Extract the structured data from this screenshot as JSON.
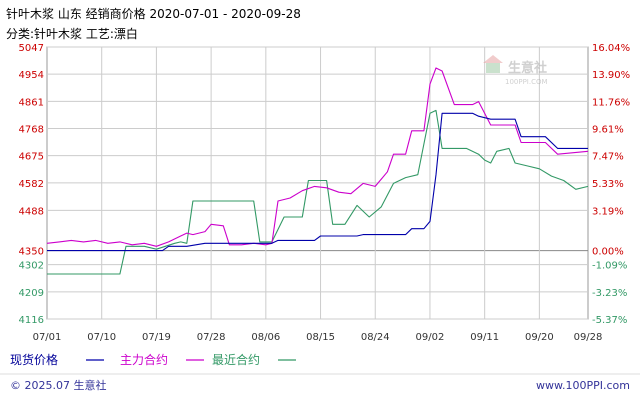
{
  "header": {
    "title": "针叶木浆 山东 经销商价格 2020-07-01 - 2020-09-28",
    "subtitle": "分类:针叶木浆 工艺:漂白"
  },
  "watermark": {
    "brand": "生意社",
    "url": "100PPI.COM"
  },
  "legend": [
    {
      "label": "现货价格",
      "color": "#0000aa"
    },
    {
      "label": "主力合约",
      "color": "#cc00cc"
    },
    {
      "label": "最近合约",
      "color": "#339966"
    }
  ],
  "footer": {
    "copyright": "© 2025.07 生意社",
    "site": "www.100PPI.com"
  },
  "colors": {
    "left_axis": "#cc0000",
    "left_axis_lower": "#339966",
    "right_axis": "#cc0000",
    "right_axis_lower": "#339966",
    "grid": "#cccccc"
  },
  "chart_data": {
    "type": "line",
    "x_ticks": [
      "07/01",
      "07/10",
      "07/19",
      "07/28",
      "08/06",
      "08/15",
      "08/24",
      "09/02",
      "09/11",
      "09/20",
      "09/28"
    ],
    "y_left_ticks": [
      5047,
      4954,
      4861,
      4768,
      4675,
      4582,
      4488,
      4350,
      4302,
      4209,
      4116
    ],
    "y_right_ticks": [
      "16.04%",
      "13.90%",
      "11.76%",
      "9.61%",
      "7.47%",
      "5.33%",
      "3.19%",
      "0.00%",
      "-1.09%",
      "-3.23%",
      "-5.37%"
    ],
    "ylim": [
      4116,
      5047
    ],
    "x_range": [
      "07/01",
      "09/28"
    ],
    "grid": true,
    "series": [
      {
        "name": "现货价格",
        "color": "#0000aa",
        "points": [
          [
            "07/01",
            4350
          ],
          [
            "07/20",
            4350
          ],
          [
            "07/21",
            4365
          ],
          [
            "07/24",
            4365
          ],
          [
            "07/27",
            4375
          ],
          [
            "08/07",
            4375
          ],
          [
            "08/08",
            4385
          ],
          [
            "08/14",
            4385
          ],
          [
            "08/15",
            4400
          ],
          [
            "08/21",
            4400
          ],
          [
            "08/22",
            4405
          ],
          [
            "08/29",
            4405
          ],
          [
            "08/30",
            4425
          ],
          [
            "09/01",
            4425
          ],
          [
            "09/02",
            4450
          ],
          [
            "09/03",
            4610
          ],
          [
            "09/04",
            4820
          ],
          [
            "09/09",
            4820
          ],
          [
            "09/10",
            4810
          ],
          [
            "09/12",
            4800
          ],
          [
            "09/16",
            4800
          ],
          [
            "09/17",
            4740
          ],
          [
            "09/21",
            4740
          ],
          [
            "09/23",
            4700
          ],
          [
            "09/28",
            4700
          ]
        ]
      },
      {
        "name": "主力合约",
        "color": "#cc00cc",
        "points": [
          [
            "07/01",
            4375
          ],
          [
            "07/03",
            4380
          ],
          [
            "07/05",
            4385
          ],
          [
            "07/07",
            4380
          ],
          [
            "07/09",
            4385
          ],
          [
            "07/11",
            4375
          ],
          [
            "07/13",
            4380
          ],
          [
            "07/15",
            4370
          ],
          [
            "07/17",
            4375
          ],
          [
            "07/19",
            4365
          ],
          [
            "07/21",
            4380
          ],
          [
            "07/23",
            4400
          ],
          [
            "07/24",
            4410
          ],
          [
            "07/25",
            4405
          ],
          [
            "07/27",
            4415
          ],
          [
            "07/28",
            4440
          ],
          [
            "07/30",
            4435
          ],
          [
            "07/31",
            4370
          ],
          [
            "08/02",
            4370
          ],
          [
            "08/04",
            4375
          ],
          [
            "08/06",
            4370
          ],
          [
            "08/07",
            4375
          ],
          [
            "08/08",
            4520
          ],
          [
            "08/10",
            4530
          ],
          [
            "08/12",
            4555
          ],
          [
            "08/14",
            4570
          ],
          [
            "08/16",
            4565
          ],
          [
            "08/18",
            4550
          ],
          [
            "08/20",
            4545
          ],
          [
            "08/22",
            4580
          ],
          [
            "08/24",
            4570
          ],
          [
            "08/26",
            4620
          ],
          [
            "08/27",
            4680
          ],
          [
            "08/29",
            4680
          ],
          [
            "08/30",
            4760
          ],
          [
            "09/01",
            4760
          ],
          [
            "09/02",
            4920
          ],
          [
            "09/03",
            4975
          ],
          [
            "09/04",
            4965
          ],
          [
            "09/06",
            4850
          ],
          [
            "09/09",
            4850
          ],
          [
            "09/10",
            4860
          ],
          [
            "09/12",
            4780
          ],
          [
            "09/16",
            4780
          ],
          [
            "09/17",
            4720
          ],
          [
            "09/21",
            4720
          ],
          [
            "09/23",
            4680
          ],
          [
            "09/28",
            4690
          ]
        ]
      },
      {
        "name": "最近合约",
        "color": "#339966",
        "points": [
          [
            "07/01",
            4270
          ],
          [
            "07/13",
            4270
          ],
          [
            "07/14",
            4365
          ],
          [
            "07/17",
            4365
          ],
          [
            "07/19",
            4355
          ],
          [
            "07/22",
            4375
          ],
          [
            "07/23",
            4380
          ],
          [
            "07/24",
            4375
          ],
          [
            "07/25",
            4520
          ],
          [
            "08/04",
            4520
          ],
          [
            "08/05",
            4380
          ],
          [
            "08/07",
            4380
          ],
          [
            "08/09",
            4465
          ],
          [
            "08/12",
            4465
          ],
          [
            "08/13",
            4590
          ],
          [
            "08/16",
            4590
          ],
          [
            "08/17",
            4440
          ],
          [
            "08/19",
            4440
          ],
          [
            "08/21",
            4505
          ],
          [
            "08/23",
            4465
          ],
          [
            "08/25",
            4500
          ],
          [
            "08/27",
            4580
          ],
          [
            "08/29",
            4600
          ],
          [
            "08/31",
            4610
          ],
          [
            "09/02",
            4820
          ],
          [
            "09/03",
            4830
          ],
          [
            "09/04",
            4700
          ],
          [
            "09/08",
            4700
          ],
          [
            "09/10",
            4680
          ],
          [
            "09/11",
            4660
          ],
          [
            "09/12",
            4650
          ],
          [
            "09/13",
            4690
          ],
          [
            "09/15",
            4700
          ],
          [
            "09/16",
            4650
          ],
          [
            "09/18",
            4640
          ],
          [
            "09/20",
            4630
          ],
          [
            "09/22",
            4605
          ],
          [
            "09/24",
            4590
          ],
          [
            "09/26",
            4560
          ],
          [
            "09/28",
            4570
          ]
        ]
      }
    ]
  }
}
